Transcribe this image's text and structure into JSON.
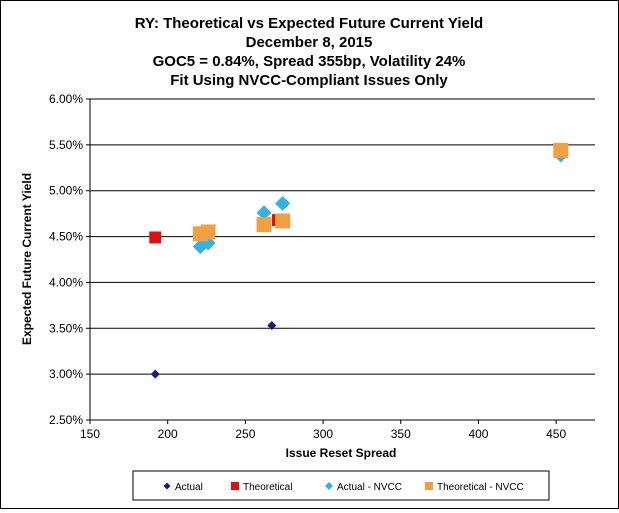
{
  "chart_data": {
    "type": "scatter",
    "title_lines": [
      "RY: Theoretical vs Expected Future Current Yield",
      "December 8, 2015",
      "GOC5 = 0.84%, Spread 355bp, Volatility  24%",
      "Fit Using NVCC-Compliant Issues Only"
    ],
    "xlabel": "Issue  Reset Spread",
    "ylabel": "Expected Future Current Yield",
    "xlim": [
      150,
      475
    ],
    "ylim": [
      2.5,
      6.0
    ],
    "xticks": [
      {
        "value": 150,
        "label": "150"
      },
      {
        "value": 200,
        "label": "200"
      },
      {
        "value": 250,
        "label": "250"
      },
      {
        "value": 300,
        "label": "300"
      },
      {
        "value": 350,
        "label": "350"
      },
      {
        "value": 400,
        "label": "400"
      },
      {
        "value": 450,
        "label": "450"
      }
    ],
    "yticks": [
      {
        "value": 2.5,
        "label": "2.50%"
      },
      {
        "value": 3.0,
        "label": "3.00%"
      },
      {
        "value": 3.5,
        "label": "3.50%"
      },
      {
        "value": 4.0,
        "label": "4.00%"
      },
      {
        "value": 4.5,
        "label": "4.50%"
      },
      {
        "value": 5.0,
        "label": "5.00%"
      },
      {
        "value": 5.5,
        "label": "5.50%"
      },
      {
        "value": 6.0,
        "label": "6.00%"
      }
    ],
    "grid": "horizontal",
    "legend_position": "bottom",
    "series": [
      {
        "name": "Actual",
        "marker": "diamond",
        "color": "#1a1a80",
        "size": "small",
        "points": [
          {
            "x": 192,
            "y": 3.0
          },
          {
            "x": 267,
            "y": 3.53
          }
        ]
      },
      {
        "name": "Theoretical",
        "marker": "square",
        "color": "#dd1111",
        "size": "medium",
        "points": [
          {
            "x": 192,
            "y": 4.49
          },
          {
            "x": 271,
            "y": 4.68
          }
        ]
      },
      {
        "name": "Actual - NVCC",
        "marker": "diamond",
        "color": "#33b2e6",
        "size": "large",
        "points": [
          {
            "x": 221,
            "y": 4.39
          },
          {
            "x": 226,
            "y": 4.43
          },
          {
            "x": 262,
            "y": 4.76
          },
          {
            "x": 274,
            "y": 4.86
          },
          {
            "x": 453,
            "y": 5.39
          }
        ]
      },
      {
        "name": "Theoretical - NVCC",
        "marker": "square",
        "color": "#f0a040",
        "size": "large",
        "points": [
          {
            "x": 221,
            "y": 4.53
          },
          {
            "x": 226,
            "y": 4.55
          },
          {
            "x": 262,
            "y": 4.63
          },
          {
            "x": 274,
            "y": 4.67
          },
          {
            "x": 453,
            "y": 5.44
          }
        ]
      }
    ]
  }
}
